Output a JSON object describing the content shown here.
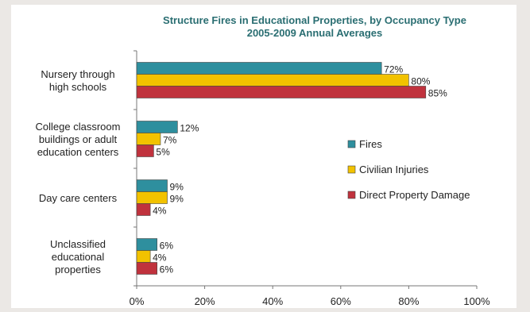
{
  "chart_data": {
    "type": "bar",
    "orientation": "horizontal",
    "title": "Structure Fires in Educational Properties, by Occupancy Type",
    "subtitle": "2005-2009 Annual Averages",
    "categories": [
      [
        "Nursery through",
        "high schools"
      ],
      [
        "College classroom",
        "buildings or adult",
        "education centers"
      ],
      [
        "Day care centers"
      ],
      [
        "Unclassified",
        "educational",
        "properties"
      ]
    ],
    "series": [
      {
        "name": "Fires",
        "color": "#2e8f9e",
        "values": [
          72,
          12,
          9,
          6
        ],
        "labels": [
          "72%",
          "12%",
          "9%",
          "6%"
        ]
      },
      {
        "name": "Civilian Injuries",
        "color": "#f2c200",
        "values": [
          80,
          7,
          9,
          4
        ],
        "labels": [
          "80%",
          "7%",
          "9%",
          "4%"
        ]
      },
      {
        "name": "Direct Property Damage",
        "color": "#c0323d",
        "values": [
          85,
          5,
          4,
          6
        ],
        "labels": [
          "85%",
          "5%",
          "4%",
          "6%"
        ]
      }
    ],
    "xlim": [
      0,
      100
    ],
    "xticks": [
      "0%",
      "20%",
      "40%",
      "60%",
      "80%",
      "100%"
    ],
    "legend_position": "right",
    "grid": false
  }
}
